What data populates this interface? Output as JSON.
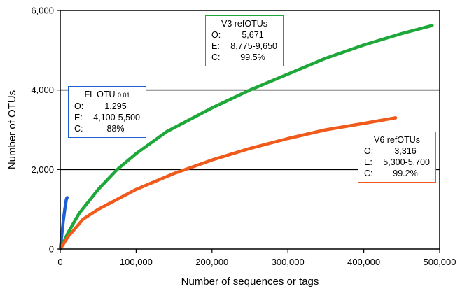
{
  "chart_data": {
    "type": "line",
    "xlabel": "Number of sequences or tags",
    "ylabel": "Number of OTUs",
    "xlim": [
      0,
      500000
    ],
    "ylim": [
      0,
      6000
    ],
    "x_ticks": [
      "0",
      "100,000",
      "200,000",
      "300,000",
      "400,000",
      "500,000"
    ],
    "y_ticks": [
      "0",
      "2,000",
      "4,000",
      "6,000"
    ],
    "grid": "horizontal lines at 2,000 and 4,000",
    "series": [
      {
        "name": "FL OTU 0.01",
        "color": "#1f5fd6",
        "x": [
          0,
          2000,
          4000,
          6000,
          8000,
          9000
        ],
        "y": [
          0,
          350,
          700,
          1000,
          1250,
          1295
        ]
      },
      {
        "name": "V3 refOTUs",
        "color": "#1fa83a",
        "x": [
          0,
          10000,
          25000,
          50000,
          75000,
          100000,
          140000,
          200000,
          250000,
          300000,
          350000,
          400000,
          450000,
          490000
        ],
        "y": [
          0,
          400,
          900,
          1500,
          2000,
          2400,
          2950,
          3550,
          4000,
          4400,
          4800,
          5130,
          5420,
          5620
        ]
      },
      {
        "name": "V6 refOTUs",
        "color": "#f05a1a",
        "x": [
          0,
          10000,
          30000,
          50000,
          75000,
          100000,
          150000,
          200000,
          250000,
          300000,
          350000,
          400000,
          442000
        ],
        "y": [
          0,
          300,
          750,
          1000,
          1250,
          1500,
          1900,
          2240,
          2530,
          2780,
          3000,
          3160,
          3300
        ]
      }
    ],
    "annotations": [
      {
        "title": "FL OTU",
        "title_sub": "0.01",
        "color": "#1f5fd6",
        "rows": [
          [
            "O:",
            "1.295"
          ],
          [
            "E:",
            "4,100-5,500"
          ],
          [
            "C:",
            "88%"
          ]
        ]
      },
      {
        "title": "V3 refOTUs",
        "color": "#1fa83a",
        "rows": [
          [
            "O:",
            "5,671"
          ],
          [
            "E:",
            "8,775-9,650"
          ],
          [
            "C:",
            "99.5%"
          ]
        ]
      },
      {
        "title": "V6 refOTUs",
        "color": "#f05a1a",
        "rows": [
          [
            "O:",
            "3,316"
          ],
          [
            "E:",
            "5,300-5,700"
          ],
          [
            "C:",
            "99.2%"
          ]
        ]
      }
    ]
  }
}
